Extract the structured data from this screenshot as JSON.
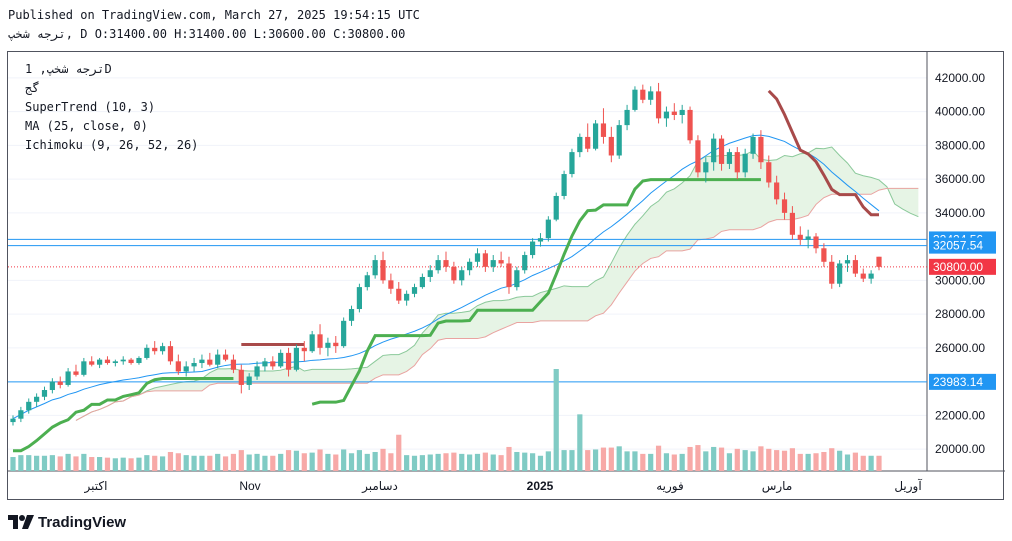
{
  "header": {
    "published": "Published on TradingView.com, March 27, 2025 19:54:15 UTC",
    "ohlc_line": "ترجه شخپ, D O:31400.00 H:31400.00 L:30600.00 C:30800.00"
  },
  "legend": {
    "symbol": "ترجه شخپ, 1D",
    "exchange": "گج",
    "indicators": [
      "SuperTrend (10, 3)",
      "MA (25, close, 0)",
      "Ichimoku (9, 26, 52, 26)"
    ]
  },
  "footer": {
    "brand": "TradingView"
  },
  "colors": {
    "up": "#26a69a",
    "down": "#ef5350",
    "supertrend_up": "#4caf50",
    "supertrend_down": "#a84a4a",
    "ma": "#2196f3",
    "cloud_fill": "#e6f4e5",
    "cloud_edge_green": "#8bc99a",
    "cloud_edge_red": "#e9a3a0",
    "hline": "#2196f3",
    "price_label": "#f23645",
    "level_label": "#2196f3"
  },
  "chart_data": {
    "type": "candlestick",
    "x_axis_labels": [
      "اکتبر",
      "Nov",
      "دسامبر",
      "2025",
      "فوریه",
      "مارس",
      "آوریل"
    ],
    "y_ticks": [
      "42000.00",
      "40000.00",
      "38000.00",
      "36000.00",
      "34000.00",
      "30000.00",
      "28000.00",
      "26000.00",
      "22000.00",
      "20000.00"
    ],
    "y_tick_values": [
      42000,
      40000,
      38000,
      36000,
      34000,
      30000,
      28000,
      26000,
      22000,
      20000
    ],
    "ylim": [
      18700,
      43000
    ],
    "levels": [
      {
        "label": "32424.56",
        "value": 32424.56
      },
      {
        "label": "32057.54",
        "value": 32057.54
      },
      {
        "label": "23983.14",
        "value": 23983.14
      }
    ],
    "last_price": {
      "label": "30800.00",
      "value": 30800
    },
    "candles": [
      [
        21600,
        22000,
        21400,
        21800
      ],
      [
        21800,
        22500,
        21600,
        22300
      ],
      [
        22300,
        23000,
        22100,
        22800
      ],
      [
        22800,
        23300,
        22500,
        23100
      ],
      [
        23100,
        23700,
        22900,
        23500
      ],
      [
        23500,
        24200,
        23300,
        24000
      ],
      [
        24000,
        24300,
        23600,
        23800
      ],
      [
        23800,
        24800,
        23700,
        24600
      ],
      [
        24600,
        25000,
        24300,
        24400
      ],
      [
        24400,
        25400,
        24300,
        25200
      ],
      [
        25200,
        25500,
        24900,
        25000
      ],
      [
        25000,
        25400,
        24800,
        25300
      ],
      [
        25300,
        25500,
        25000,
        25100
      ],
      [
        25100,
        25300,
        24900,
        25200
      ],
      [
        25200,
        25500,
        25000,
        25300
      ],
      [
        25300,
        25400,
        25000,
        25100
      ],
      [
        25100,
        25500,
        25000,
        25400
      ],
      [
        25400,
        26200,
        25300,
        26000
      ],
      [
        26000,
        26400,
        25600,
        25800
      ],
      [
        25800,
        26300,
        25600,
        26100
      ],
      [
        26100,
        26400,
        25000,
        25200
      ],
      [
        25200,
        25600,
        24400,
        24600
      ],
      [
        24600,
        25200,
        24300,
        24900
      ],
      [
        24900,
        25400,
        24600,
        25100
      ],
      [
        25100,
        25600,
        24800,
        25300
      ],
      [
        25300,
        25700,
        24900,
        25000
      ],
      [
        25000,
        25900,
        24800,
        25600
      ],
      [
        25600,
        25900,
        25200,
        25300
      ],
      [
        25300,
        25600,
        24500,
        24700
      ],
      [
        24700,
        25000,
        23300,
        23800
      ],
      [
        23800,
        24500,
        23500,
        24300
      ],
      [
        24300,
        25200,
        24100,
        24900
      ],
      [
        24900,
        25400,
        24600,
        25200
      ],
      [
        25200,
        25500,
        24700,
        24900
      ],
      [
        24900,
        25900,
        24800,
        25700
      ],
      [
        25700,
        26000,
        24300,
        24700
      ],
      [
        24700,
        26200,
        24600,
        26000
      ],
      [
        26000,
        26400,
        25200,
        25800
      ],
      [
        25800,
        27000,
        25700,
        26800
      ],
      [
        26800,
        27400,
        25600,
        26000
      ],
      [
        26000,
        26600,
        25500,
        26300
      ],
      [
        26300,
        26700,
        25700,
        26100
      ],
      [
        26100,
        27800,
        26000,
        27600
      ],
      [
        27600,
        28500,
        27300,
        28300
      ],
      [
        28300,
        29800,
        28100,
        29600
      ],
      [
        29600,
        30500,
        29400,
        30300
      ],
      [
        30300,
        31500,
        30100,
        31200
      ],
      [
        31200,
        31700,
        29800,
        30000
      ],
      [
        30000,
        30400,
        29200,
        29500
      ],
      [
        29500,
        29900,
        28600,
        28800
      ],
      [
        28800,
        29400,
        28500,
        29200
      ],
      [
        29200,
        29800,
        29000,
        29600
      ],
      [
        29600,
        30400,
        29500,
        30200
      ],
      [
        30200,
        30900,
        29900,
        30600
      ],
      [
        30600,
        31500,
        30400,
        31200
      ],
      [
        31200,
        31700,
        30500,
        30800
      ],
      [
        30800,
        31100,
        29800,
        30000
      ],
      [
        30000,
        30800,
        29700,
        30600
      ],
      [
        30600,
        31300,
        30300,
        31100
      ],
      [
        31100,
        31900,
        30800,
        31600
      ],
      [
        31600,
        31800,
        30500,
        30800
      ],
      [
        30800,
        31500,
        30500,
        31200
      ],
      [
        31200,
        31700,
        30800,
        31000
      ],
      [
        31000,
        31400,
        29200,
        29600
      ],
      [
        29600,
        30800,
        29400,
        30600
      ],
      [
        30600,
        31700,
        30400,
        31500
      ],
      [
        31500,
        32500,
        31300,
        32300
      ],
      [
        32300,
        32800,
        32000,
        32500
      ],
      [
        32500,
        33800,
        32300,
        33600
      ],
      [
        33600,
        35200,
        33500,
        35000
      ],
      [
        35000,
        36500,
        34800,
        36300
      ],
      [
        36300,
        37800,
        36100,
        37600
      ],
      [
        37600,
        38700,
        37300,
        38500
      ],
      [
        38500,
        39300,
        37600,
        37800
      ],
      [
        37800,
        39500,
        37700,
        39300
      ],
      [
        39300,
        40200,
        38100,
        38500
      ],
      [
        38500,
        39100,
        37000,
        37400
      ],
      [
        37400,
        39500,
        37200,
        39200
      ],
      [
        39200,
        40400,
        38900,
        40100
      ],
      [
        40100,
        41500,
        40000,
        41300
      ],
      [
        41300,
        41600,
        40500,
        40700
      ],
      [
        40700,
        41500,
        40400,
        41200
      ],
      [
        41200,
        41700,
        39300,
        39600
      ],
      [
        39600,
        40300,
        39100,
        40000
      ],
      [
        40000,
        40500,
        39500,
        39800
      ],
      [
        39800,
        40400,
        39300,
        40100
      ],
      [
        40100,
        40300,
        38100,
        38300
      ],
      [
        38300,
        38600,
        36100,
        36400
      ],
      [
        36400,
        37300,
        35800,
        37000
      ],
      [
        37000,
        38700,
        36500,
        38400
      ],
      [
        38400,
        38600,
        36500,
        36900
      ],
      [
        36900,
        37800,
        36600,
        37600
      ],
      [
        37600,
        37900,
        36000,
        36400
      ],
      [
        36400,
        37800,
        36100,
        37500
      ],
      [
        37500,
        38700,
        37200,
        38500
      ],
      [
        38500,
        38900,
        36600,
        37000
      ],
      [
        37000,
        37400,
        35500,
        35800
      ],
      [
        35800,
        36200,
        34500,
        34800
      ],
      [
        34800,
        35200,
        33600,
        34000
      ],
      [
        34000,
        34400,
        32400,
        32700
      ],
      [
        32700,
        33200,
        32100,
        32400
      ],
      [
        32400,
        33000,
        31900,
        32600
      ],
      [
        32600,
        32800,
        31600,
        31900
      ],
      [
        31900,
        32200,
        30800,
        31100
      ],
      [
        31100,
        31500,
        29500,
        29800
      ],
      [
        29800,
        31200,
        29600,
        31000
      ],
      [
        31000,
        31500,
        30500,
        31200
      ],
      [
        31200,
        31500,
        30200,
        30400
      ],
      [
        30400,
        30700,
        29900,
        30100
      ],
      [
        30100,
        30600,
        29800,
        30400
      ],
      [
        31400,
        31400,
        30600,
        30800
      ]
    ],
    "volume_max_label": "peak"
  }
}
